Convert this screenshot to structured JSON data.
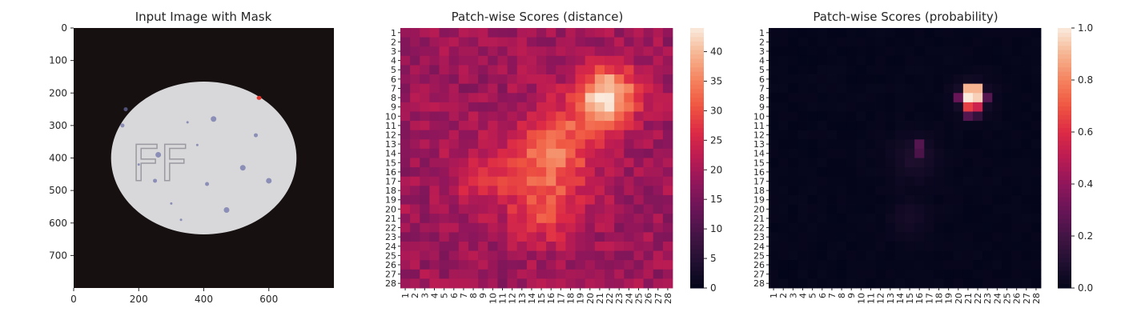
{
  "chart_data": [
    {
      "type": "image",
      "title": "Input Image with Mask",
      "xlim": [
        0,
        800
      ],
      "ylim": [
        800,
        0
      ],
      "xticks": [
        0,
        200,
        400,
        600
      ],
      "yticks": [
        0,
        100,
        200,
        300,
        400,
        500,
        600,
        700
      ],
      "image": {
        "background": "#161010",
        "pill_color": "#d8d8da",
        "pill_ellipse": {
          "cx": 400,
          "cy": 400,
          "rx": 285,
          "ry": 235
        },
        "imprint_text": "FF",
        "mask_color": "#e0342a",
        "mask_point": [
          570,
          215
        ]
      }
    },
    {
      "type": "heatmap",
      "title": "Patch-wise Scores (distance)",
      "x_categories": [
        "1",
        "2",
        "3",
        "4",
        "5",
        "6",
        "7",
        "8",
        "9",
        "10",
        "11",
        "12",
        "13",
        "14",
        "15",
        "16",
        "17",
        "18",
        "19",
        "20",
        "21",
        "22",
        "23",
        "24",
        "25",
        "26",
        "27",
        "28"
      ],
      "y_categories": [
        "1",
        "2",
        "3",
        "4",
        "5",
        "6",
        "7",
        "8",
        "9",
        "10",
        "11",
        "12",
        "13",
        "14",
        "15",
        "16",
        "17",
        "18",
        "19",
        "20",
        "21",
        "22",
        "23",
        "24",
        "25",
        "26",
        "27",
        "28"
      ],
      "colormap": "rocket",
      "vmin": 0,
      "vmax": 44,
      "colorbar_ticks": [
        0,
        5,
        10,
        15,
        20,
        25,
        30,
        35,
        40
      ],
      "peaks": [
        {
          "row": 8,
          "col": 22,
          "value": 44
        },
        {
          "row": 15,
          "col": 16,
          "value": 34
        },
        {
          "row": 21,
          "col": 15,
          "value": 30
        }
      ],
      "baseline_value": 19
    },
    {
      "type": "heatmap",
      "title": "Patch-wise Scores (probability)",
      "x_categories": [
        "1",
        "2",
        "3",
        "4",
        "5",
        "6",
        "7",
        "8",
        "9",
        "10",
        "11",
        "12",
        "13",
        "14",
        "15",
        "16",
        "17",
        "18",
        "19",
        "20",
        "21",
        "22",
        "23",
        "24",
        "25",
        "26",
        "27",
        "28"
      ],
      "y_categories": [
        "1",
        "2",
        "3",
        "4",
        "5",
        "6",
        "7",
        "8",
        "9",
        "10",
        "11",
        "12",
        "13",
        "14",
        "15",
        "16",
        "17",
        "18",
        "19",
        "20",
        "21",
        "22",
        "23",
        "24",
        "25",
        "26",
        "27",
        "28"
      ],
      "colormap": "rocket",
      "vmin": 0,
      "vmax": 1,
      "colorbar_ticks": [
        "0.0",
        "0.2",
        "0.4",
        "0.6",
        "0.8",
        "1.0"
      ],
      "hot_cells": [
        {
          "row": 7,
          "col": 21,
          "value": 0.9
        },
        {
          "row": 7,
          "col": 22,
          "value": 0.9
        },
        {
          "row": 8,
          "col": 21,
          "value": 1.0
        },
        {
          "row": 8,
          "col": 22,
          "value": 0.95
        },
        {
          "row": 9,
          "col": 21,
          "value": 0.65
        },
        {
          "row": 9,
          "col": 22,
          "value": 0.55
        },
        {
          "row": 10,
          "col": 21,
          "value": 0.25
        },
        {
          "row": 10,
          "col": 22,
          "value": 0.15
        },
        {
          "row": 8,
          "col": 20,
          "value": 0.3
        },
        {
          "row": 8,
          "col": 23,
          "value": 0.25
        },
        {
          "row": 13,
          "col": 16,
          "value": 0.25
        },
        {
          "row": 14,
          "col": 16,
          "value": 0.22
        }
      ]
    }
  ]
}
